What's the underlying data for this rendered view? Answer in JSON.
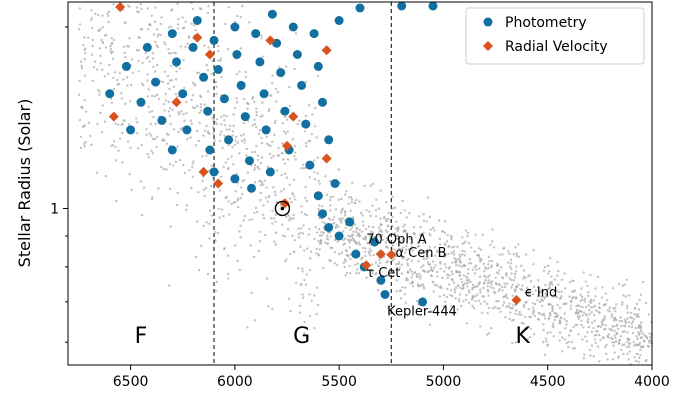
{
  "chart_data": {
    "type": "scatter",
    "ylabel": "Stellar Radius (Solar)",
    "x_axis": {
      "range": [
        6800,
        4000
      ],
      "reversed": true,
      "ticks": [
        6500,
        6000,
        5500,
        5000,
        4500,
        4000
      ],
      "tick_labels": [
        "6500",
        "6000",
        "5500",
        "5000",
        "4500",
        "4000"
      ]
    },
    "y_axis": {
      "scale": "log",
      "range": [
        0.55,
        2.2
      ],
      "major_ticks": [
        1
      ],
      "major_tick_labels": [
        "1"
      ],
      "minor_ticks": [
        0.6,
        0.7,
        0.8,
        0.9,
        2.0
      ]
    },
    "grid": false,
    "legend": {
      "placement": "top-right",
      "entries": [
        "Photometry",
        "Radial Velocity"
      ]
    },
    "colors": {
      "photometry": "#1170a0",
      "radial_velocity": "#d9531e",
      "background": "#a8a8a8"
    },
    "divider_lines": [
      6100,
      5250
    ],
    "regions": [
      {
        "label": "F",
        "x": 6450
      },
      {
        "label": "G",
        "x": 5680
      },
      {
        "label": "K",
        "x": 4620
      }
    ],
    "sun": {
      "x": 5772,
      "y": 1.0
    },
    "series": [
      {
        "name": "Photometry",
        "marker": "circle",
        "points": [
          [
            6600,
            1.55
          ],
          [
            6520,
            1.72
          ],
          [
            6450,
            1.5
          ],
          [
            6420,
            1.85
          ],
          [
            6380,
            1.62
          ],
          [
            6350,
            1.4
          ],
          [
            6300,
            1.95
          ],
          [
            6280,
            1.75
          ],
          [
            6250,
            1.55
          ],
          [
            6230,
            1.35
          ],
          [
            6200,
            1.85
          ],
          [
            6180,
            2.05
          ],
          [
            6150,
            1.65
          ],
          [
            6130,
            1.45
          ],
          [
            6120,
            1.25
          ],
          [
            6100,
            1.9
          ],
          [
            6080,
            1.7
          ],
          [
            6050,
            1.52
          ],
          [
            6030,
            1.3
          ],
          [
            6000,
            2.0
          ],
          [
            5990,
            1.8
          ],
          [
            5970,
            1.6
          ],
          [
            5950,
            1.42
          ],
          [
            5930,
            1.2
          ],
          [
            5920,
            1.08
          ],
          [
            5900,
            1.95
          ],
          [
            5880,
            1.75
          ],
          [
            5860,
            1.55
          ],
          [
            5850,
            1.35
          ],
          [
            5830,
            1.15
          ],
          [
            5820,
            2.1
          ],
          [
            5800,
            1.88
          ],
          [
            5780,
            1.68
          ],
          [
            5760,
            1.45
          ],
          [
            5740,
            1.25
          ],
          [
            5720,
            2.0
          ],
          [
            5700,
            1.8
          ],
          [
            5680,
            1.6
          ],
          [
            5660,
            1.38
          ],
          [
            5640,
            1.18
          ],
          [
            5620,
            1.95
          ],
          [
            5600,
            1.72
          ],
          [
            5580,
            1.5
          ],
          [
            5550,
            1.3
          ],
          [
            5520,
            1.1
          ],
          [
            5600,
            1.05
          ],
          [
            5580,
            0.98
          ],
          [
            5550,
            0.93
          ],
          [
            5500,
            0.9
          ],
          [
            5450,
            0.95
          ],
          [
            5420,
            0.84
          ],
          [
            5380,
            0.8
          ],
          [
            5330,
            0.88
          ],
          [
            5300,
            0.76
          ],
          [
            5280,
            0.72
          ],
          [
            5100,
            0.7
          ],
          [
            5050,
            2.2
          ],
          [
            5200,
            2.2
          ],
          [
            5400,
            2.15
          ],
          [
            5500,
            2.05
          ],
          [
            6000,
            1.12
          ],
          [
            6100,
            1.15
          ],
          [
            6300,
            1.25
          ],
          [
            6500,
            1.35
          ]
        ]
      },
      {
        "name": "Radial Velocity",
        "marker": "diamond",
        "points": [
          [
            6550,
            2.2
          ],
          [
            6580,
            1.42
          ],
          [
            6280,
            1.5
          ],
          [
            6180,
            1.92
          ],
          [
            6120,
            1.8
          ],
          [
            6080,
            1.1
          ],
          [
            6150,
            1.15
          ],
          [
            5830,
            1.9
          ],
          [
            5720,
            1.42
          ],
          [
            5750,
            1.27
          ],
          [
            5760,
            1.02
          ],
          [
            5560,
            1.21
          ],
          [
            5560,
            1.83
          ],
          [
            5370,
            0.805
          ],
          [
            5300,
            0.84
          ],
          [
            5250,
            0.838
          ],
          [
            4650,
            0.705
          ]
        ]
      }
    ],
    "annotations": [
      {
        "text": "70 Oph A",
        "x": 5370,
        "y": 0.875
      },
      {
        "text": "α Cen B",
        "x": 5230,
        "y": 0.83
      },
      {
        "text": "τ Cet",
        "x": 5370,
        "y": 0.77
      },
      {
        "text": "Kepler-444",
        "x": 5270,
        "y": 0.665
      },
      {
        "text": "ϵ Ind",
        "x": 4610,
        "y": 0.715
      }
    ]
  }
}
